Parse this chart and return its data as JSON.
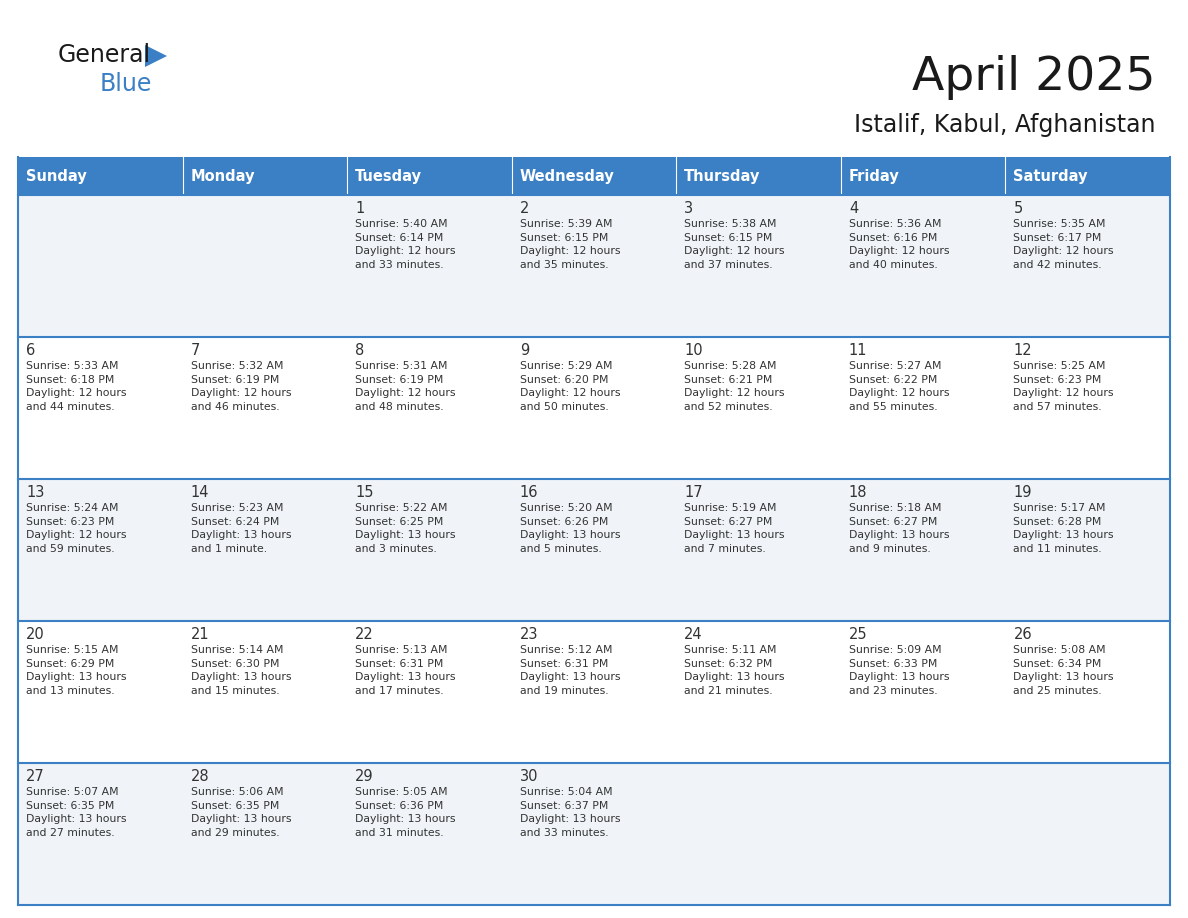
{
  "title": "April 2025",
  "subtitle": "Istalif, Kabul, Afghanistan",
  "header_color": "#3b7fc4",
  "header_text_color": "#ffffff",
  "row_bg_odd": "#f0f4f8",
  "row_bg_even": "#ffffff",
  "text_color": "#333333",
  "border_color": "#3b7fc4",
  "days_of_week": [
    "Sunday",
    "Monday",
    "Tuesday",
    "Wednesday",
    "Thursday",
    "Friday",
    "Saturday"
  ],
  "logo_general_color": "#1a1a1a",
  "logo_blue_color": "#3b7fc4",
  "title_color": "#1a1a1a",
  "calendar_data": [
    [
      {
        "day": "",
        "info": ""
      },
      {
        "day": "",
        "info": ""
      },
      {
        "day": "1",
        "info": "Sunrise: 5:40 AM\nSunset: 6:14 PM\nDaylight: 12 hours\nand 33 minutes."
      },
      {
        "day": "2",
        "info": "Sunrise: 5:39 AM\nSunset: 6:15 PM\nDaylight: 12 hours\nand 35 minutes."
      },
      {
        "day": "3",
        "info": "Sunrise: 5:38 AM\nSunset: 6:15 PM\nDaylight: 12 hours\nand 37 minutes."
      },
      {
        "day": "4",
        "info": "Sunrise: 5:36 AM\nSunset: 6:16 PM\nDaylight: 12 hours\nand 40 minutes."
      },
      {
        "day": "5",
        "info": "Sunrise: 5:35 AM\nSunset: 6:17 PM\nDaylight: 12 hours\nand 42 minutes."
      }
    ],
    [
      {
        "day": "6",
        "info": "Sunrise: 5:33 AM\nSunset: 6:18 PM\nDaylight: 12 hours\nand 44 minutes."
      },
      {
        "day": "7",
        "info": "Sunrise: 5:32 AM\nSunset: 6:19 PM\nDaylight: 12 hours\nand 46 minutes."
      },
      {
        "day": "8",
        "info": "Sunrise: 5:31 AM\nSunset: 6:19 PM\nDaylight: 12 hours\nand 48 minutes."
      },
      {
        "day": "9",
        "info": "Sunrise: 5:29 AM\nSunset: 6:20 PM\nDaylight: 12 hours\nand 50 minutes."
      },
      {
        "day": "10",
        "info": "Sunrise: 5:28 AM\nSunset: 6:21 PM\nDaylight: 12 hours\nand 52 minutes."
      },
      {
        "day": "11",
        "info": "Sunrise: 5:27 AM\nSunset: 6:22 PM\nDaylight: 12 hours\nand 55 minutes."
      },
      {
        "day": "12",
        "info": "Sunrise: 5:25 AM\nSunset: 6:23 PM\nDaylight: 12 hours\nand 57 minutes."
      }
    ],
    [
      {
        "day": "13",
        "info": "Sunrise: 5:24 AM\nSunset: 6:23 PM\nDaylight: 12 hours\nand 59 minutes."
      },
      {
        "day": "14",
        "info": "Sunrise: 5:23 AM\nSunset: 6:24 PM\nDaylight: 13 hours\nand 1 minute."
      },
      {
        "day": "15",
        "info": "Sunrise: 5:22 AM\nSunset: 6:25 PM\nDaylight: 13 hours\nand 3 minutes."
      },
      {
        "day": "16",
        "info": "Sunrise: 5:20 AM\nSunset: 6:26 PM\nDaylight: 13 hours\nand 5 minutes."
      },
      {
        "day": "17",
        "info": "Sunrise: 5:19 AM\nSunset: 6:27 PM\nDaylight: 13 hours\nand 7 minutes."
      },
      {
        "day": "18",
        "info": "Sunrise: 5:18 AM\nSunset: 6:27 PM\nDaylight: 13 hours\nand 9 minutes."
      },
      {
        "day": "19",
        "info": "Sunrise: 5:17 AM\nSunset: 6:28 PM\nDaylight: 13 hours\nand 11 minutes."
      }
    ],
    [
      {
        "day": "20",
        "info": "Sunrise: 5:15 AM\nSunset: 6:29 PM\nDaylight: 13 hours\nand 13 minutes."
      },
      {
        "day": "21",
        "info": "Sunrise: 5:14 AM\nSunset: 6:30 PM\nDaylight: 13 hours\nand 15 minutes."
      },
      {
        "day": "22",
        "info": "Sunrise: 5:13 AM\nSunset: 6:31 PM\nDaylight: 13 hours\nand 17 minutes."
      },
      {
        "day": "23",
        "info": "Sunrise: 5:12 AM\nSunset: 6:31 PM\nDaylight: 13 hours\nand 19 minutes."
      },
      {
        "day": "24",
        "info": "Sunrise: 5:11 AM\nSunset: 6:32 PM\nDaylight: 13 hours\nand 21 minutes."
      },
      {
        "day": "25",
        "info": "Sunrise: 5:09 AM\nSunset: 6:33 PM\nDaylight: 13 hours\nand 23 minutes."
      },
      {
        "day": "26",
        "info": "Sunrise: 5:08 AM\nSunset: 6:34 PM\nDaylight: 13 hours\nand 25 minutes."
      }
    ],
    [
      {
        "day": "27",
        "info": "Sunrise: 5:07 AM\nSunset: 6:35 PM\nDaylight: 13 hours\nand 27 minutes."
      },
      {
        "day": "28",
        "info": "Sunrise: 5:06 AM\nSunset: 6:35 PM\nDaylight: 13 hours\nand 29 minutes."
      },
      {
        "day": "29",
        "info": "Sunrise: 5:05 AM\nSunset: 6:36 PM\nDaylight: 13 hours\nand 31 minutes."
      },
      {
        "day": "30",
        "info": "Sunrise: 5:04 AM\nSunset: 6:37 PM\nDaylight: 13 hours\nand 33 minutes."
      },
      {
        "day": "",
        "info": ""
      },
      {
        "day": "",
        "info": ""
      },
      {
        "day": "",
        "info": ""
      }
    ]
  ]
}
